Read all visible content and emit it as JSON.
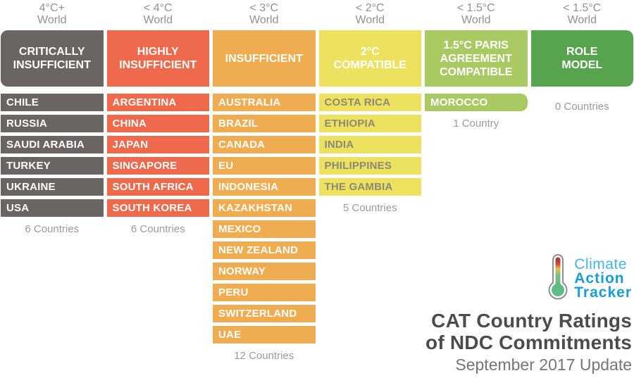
{
  "chart_data": {
    "type": "table",
    "title": "CAT Country Ratings of NDC Commitments",
    "subtitle": "September 2017 Update",
    "categories": [
      "CRITICALLY INSUFFICIENT",
      "HIGHLY INSUFFICIENT",
      "INSUFFICIENT",
      "2°C COMPATIBLE",
      "1.5°C PARIS AGREEMENT COMPATIBLE",
      "ROLE MODEL"
    ],
    "values": [
      6,
      6,
      12,
      5,
      1,
      0
    ],
    "columns": [
      {
        "world_label": "4°C+\nWorld",
        "category": "CRITICALLY\nINSUFFICIENT",
        "color": "#6a6462",
        "text_color": "#ffffff",
        "countries": [
          "CHILE",
          "RUSSIA",
          "SAUDI ARABIA",
          "TURKEY",
          "UKRAINE",
          "USA"
        ],
        "count_label": "6 Countries"
      },
      {
        "world_label": "< 4°C\nWorld",
        "category": "HIGHLY\nINSUFFICIENT",
        "color": "#ef6a4c",
        "text_color": "#ffffff",
        "countries": [
          "ARGENTINA",
          "CHINA",
          "JAPAN",
          "SINGAPORE",
          "SOUTH AFRICA",
          "SOUTH KOREA"
        ],
        "count_label": "6 Countries"
      },
      {
        "world_label": "< 3°C\nWorld",
        "category": "INSUFFICIENT",
        "color": "#f0ac50",
        "text_color": "#ffffff",
        "countries": [
          "AUSTRALIA",
          "BRAZIL",
          "CANADA",
          "EU",
          "INDONESIA",
          "KAZAKHSTAN",
          "MEXICO",
          "NEW ZEALAND",
          "NORWAY",
          "PERU",
          "SWITZERLAND",
          "UAE"
        ],
        "count_label": "12 Countries"
      },
      {
        "world_label": "< 2°C\nWorld",
        "category": "2°C\nCOMPATIBLE",
        "color": "#ece25f",
        "text_color": "#8c8975",
        "countries": [
          "COSTA RICA",
          "ETHIOPIA",
          "INDIA",
          "PHILIPPINES",
          "THE GAMBIA"
        ],
        "count_label": "5 Countries"
      },
      {
        "world_label": "< 1.5°C\nWorld",
        "category": "1.5°C PARIS\nAGREEMENT\nCOMPATIBLE",
        "color": "#a9ca63",
        "text_color": "#ffffff",
        "countries": [
          "MOROCCO"
        ],
        "count_label": "1 Country"
      },
      {
        "world_label": "< 1.5°C\nWorld",
        "category": "ROLE\nMODEL",
        "color": "#58a34e",
        "text_color": "#ffffff",
        "countries": [],
        "count_label": "0 Countries"
      }
    ]
  },
  "logo": {
    "word1": "Climate",
    "word2": "Action",
    "word3": "Tracker",
    "icon": "thermometer-icon"
  },
  "footer": {
    "title_line1": "CAT Country Ratings",
    "title_line2": "of NDC Commitments",
    "subtitle": "September 2017 Update"
  },
  "colors": {
    "background": "#ffffff",
    "label_gray": "#949190",
    "count_gray": "#9d9b98",
    "title_dark": "#4e4b4b",
    "subtitle_gray": "#787573",
    "logo_blue_light": "#45b4e6",
    "logo_blue": "#199cd8"
  }
}
